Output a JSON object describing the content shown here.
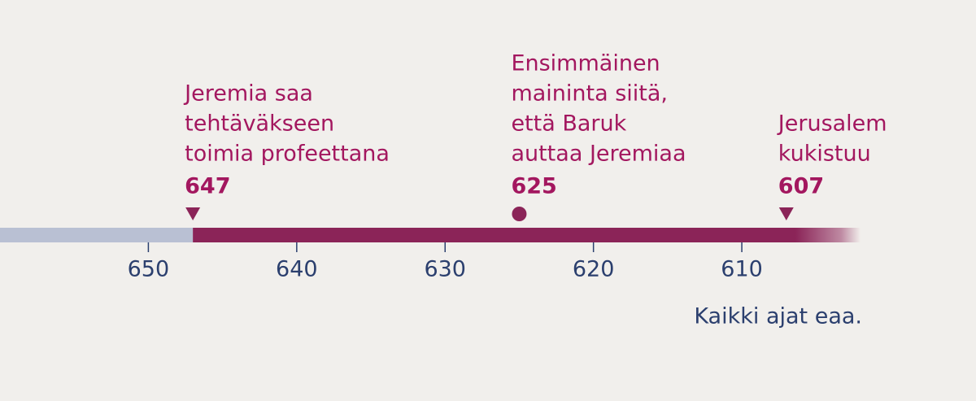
{
  "chart_data": {
    "type": "timeline",
    "xlim": [
      660,
      602
    ],
    "xticks": [
      650,
      640,
      630,
      620,
      610
    ],
    "events": [
      {
        "lines": [
          "Jeremia saa",
          "tehtäväkseen",
          "toimia profeettana"
        ],
        "value": 647,
        "marker": "triangle"
      },
      {
        "lines": [
          "Ensimmäinen",
          "maininta siitä,",
          "että Baruk",
          "auttaa Jeremiaa"
        ],
        "value": 625,
        "marker": "dot"
      },
      {
        "lines": [
          "Jerusalem",
          "kukistuu"
        ],
        "value": 607,
        "marker": "triangle"
      }
    ],
    "note": "Kaikki ajat eaa.",
    "colors": {
      "past": "#b9c0d3",
      "bar": "#8b2458",
      "event_text": "#a3175f",
      "axis_text": "#2b3f6e"
    }
  }
}
